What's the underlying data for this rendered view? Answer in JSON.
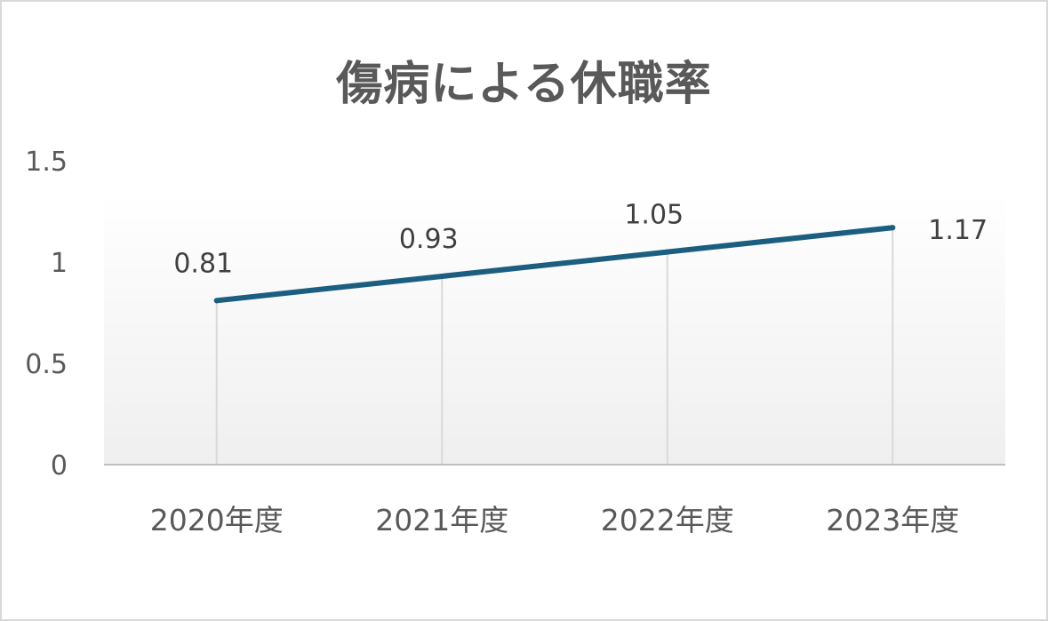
{
  "chart_data": {
    "type": "line",
    "title": "傷病による休職率",
    "xlabel": "",
    "ylabel": "",
    "categories": [
      "2020年度",
      "2021年度",
      "2022年度",
      "2023年度"
    ],
    "series": [
      {
        "values": [
          0.81,
          0.93,
          1.05,
          1.17
        ],
        "color": "#1b5e80"
      }
    ],
    "data_labels": [
      "0.81",
      "0.93",
      "1.05",
      "1.17"
    ],
    "y_ticks": [
      "0",
      "0.5",
      "1",
      "1.5"
    ],
    "ylim": [
      0,
      1.5
    ],
    "grid": "vertical drop lines at categories",
    "legend": "none"
  }
}
